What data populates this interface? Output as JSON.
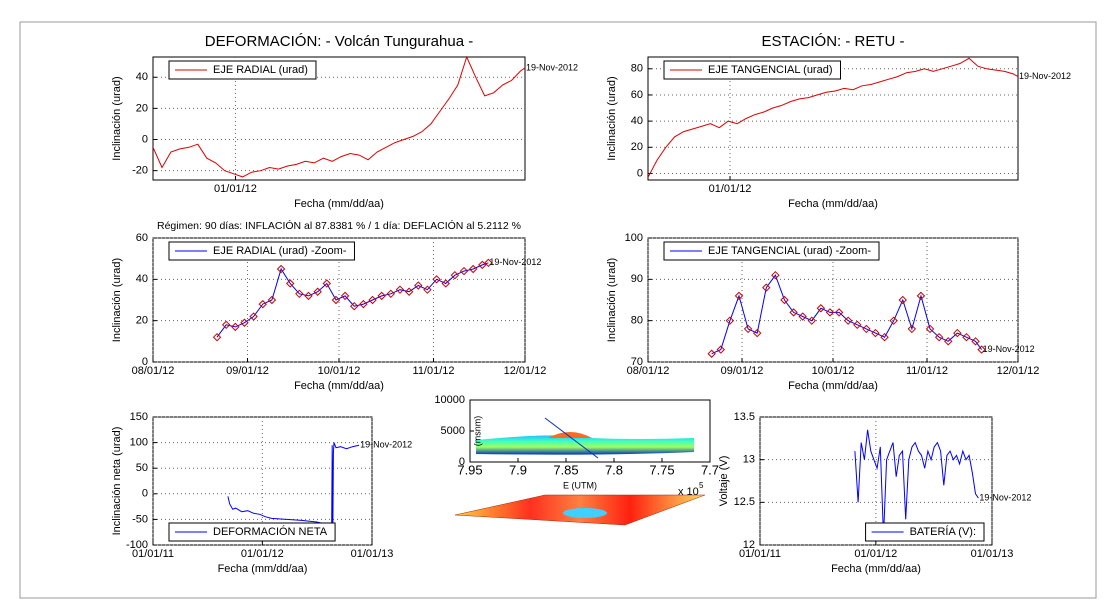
{
  "chart_data": [
    {
      "type": "line",
      "title": "DEFORMACIÓN: - Volcán Tungurahua -",
      "xlabel": "Fecha (mm/dd/aa)",
      "ylabel": "Inclinación (urad)",
      "x": [
        734777,
        734787,
        734797,
        734807,
        734817,
        734827,
        734837,
        734847,
        734857,
        734867,
        734877,
        734887,
        734897,
        734907,
        734917,
        734927,
        734937,
        734947,
        734957,
        734967,
        734977,
        734987,
        734997,
        735007,
        735017,
        735027,
        735037,
        735047,
        735057,
        735067,
        735077,
        735087,
        735097,
        735107,
        735117,
        735127,
        735137,
        735147,
        735157,
        735167,
        735177,
        735187,
        735192
      ],
      "series": [
        {
          "name": "EJE RADIAL (urad)",
          "color": "#dd0000",
          "values": [
            -5,
            -18,
            -8,
            -6,
            -5,
            -3,
            -12,
            -15,
            -20,
            -22,
            -24,
            -21,
            -20,
            -18,
            -19,
            -17,
            -16,
            -14,
            -15,
            -12,
            -14,
            -11,
            -9,
            -10,
            -13,
            -8,
            -5,
            -2,
            0,
            2,
            5,
            10,
            18,
            26,
            35,
            53,
            40,
            28,
            30,
            35,
            38,
            44,
            46
          ]
        }
      ],
      "xlim": [
        734777,
        735192
      ],
      "ylim": [
        -26,
        53
      ],
      "xticks": [
        {
          "value": 734869,
          "label": "01/01/12"
        }
      ],
      "yticks": [
        -20,
        0,
        20,
        40
      ],
      "grid": true,
      "legend": "upper left",
      "annotation": "19-Nov-2012"
    },
    {
      "type": "line",
      "title": "ESTACIÓN: - RETU -",
      "xlabel": "Fecha (mm/dd/aa)",
      "ylabel": "Inclinación (urad)",
      "x": [
        734777,
        734787,
        734797,
        734807,
        734817,
        734827,
        734837,
        734847,
        734857,
        734867,
        734877,
        734887,
        734897,
        734907,
        734917,
        734927,
        734937,
        734947,
        734957,
        734967,
        734977,
        734987,
        734997,
        735007,
        735017,
        735027,
        735037,
        735047,
        735057,
        735067,
        735077,
        735087,
        735097,
        735107,
        735117,
        735127,
        735137,
        735147,
        735157,
        735167,
        735177,
        735187,
        735192
      ],
      "series": [
        {
          "name": "EJE TANGENCIAL (urad)",
          "color": "#dd0000",
          "values": [
            -3,
            10,
            20,
            28,
            32,
            34,
            36,
            38,
            35,
            40,
            38,
            42,
            45,
            47,
            50,
            52,
            55,
            57,
            58,
            60,
            62,
            63,
            65,
            64,
            67,
            68,
            70,
            72,
            74,
            77,
            78,
            80,
            78,
            80,
            82,
            84,
            88,
            82,
            80,
            79,
            78,
            76,
            74
          ]
        }
      ],
      "xlim": [
        734777,
        735192
      ],
      "ylim": [
        -5,
        89
      ],
      "xticks": [
        {
          "value": 734869,
          "label": "01/01/12"
        }
      ],
      "yticks": [
        0,
        20,
        40,
        60,
        80
      ],
      "grid": true,
      "legend": "upper left",
      "annotation": "19-Nov-2012"
    },
    {
      "type": "line",
      "subtitle": "Régimen: 90 días: INFLACIÓN al 87.8381 % / 1 día: DEFLACIÓN al 5.2112 %",
      "xlabel": "Fecha (mm/dd/aa)",
      "ylabel": "Inclinación (urad)",
      "x": [
        735103,
        735106,
        735109,
        735112,
        735115,
        735118,
        735121,
        735124,
        735127,
        735130,
        735133,
        735136,
        735139,
        735142,
        735145,
        735148,
        735151,
        735154,
        735157,
        735160,
        735163,
        735166,
        735169,
        735172,
        735175,
        735178,
        735181,
        735184,
        735187,
        735190,
        735192
      ],
      "series": [
        {
          "name": "EJE RADIAL (urad) -Zoom-",
          "color": "#0000ff",
          "marker": "diamond",
          "marker_color": "#cc0000",
          "values": [
            12,
            18,
            17,
            19,
            22,
            28,
            30,
            45,
            38,
            33,
            32,
            34,
            38,
            30,
            32,
            27,
            28,
            30,
            32,
            33,
            35,
            34,
            37,
            35,
            40,
            38,
            42,
            44,
            45,
            47,
            48
          ]
        }
      ],
      "xlim": [
        735082,
        735204
      ],
      "ylim": [
        0,
        60
      ],
      "xticks": [
        {
          "value": 735082,
          "label": "08/01/12"
        },
        {
          "value": 735113,
          "label": "09/01/12"
        },
        {
          "value": 735143,
          "label": "10/01/12"
        },
        {
          "value": 735174,
          "label": "11/01/12"
        },
        {
          "value": 735204,
          "label": "12/01/12"
        }
      ],
      "yticks": [
        0,
        20,
        40,
        60
      ],
      "grid": true,
      "legend": "upper left",
      "annotation": "19-Nov-2012"
    },
    {
      "type": "line",
      "xlabel": "Fecha (mm/dd/aa)",
      "ylabel": "Inclinación (urad)",
      "x": [
        735103,
        735106,
        735109,
        735112,
        735115,
        735118,
        735121,
        735124,
        735127,
        735130,
        735133,
        735136,
        735139,
        735142,
        735145,
        735148,
        735151,
        735154,
        735157,
        735160,
        735163,
        735166,
        735169,
        735172,
        735175,
        735178,
        735181,
        735184,
        735187,
        735190,
        735192
      ],
      "series": [
        {
          "name": "EJE TANGENCIAL (urad) -Zoom-",
          "color": "#0000ff",
          "marker": "diamond",
          "marker_color": "#cc0000",
          "values": [
            72,
            73,
            80,
            86,
            78,
            77,
            88,
            91,
            85,
            82,
            81,
            80,
            83,
            82,
            82,
            80,
            79,
            78,
            77,
            76,
            80,
            85,
            78,
            86,
            78,
            76,
            75,
            77,
            76,
            75,
            73
          ]
        }
      ],
      "xlim": [
        735082,
        735204
      ],
      "ylim": [
        70,
        100
      ],
      "xticks": [
        {
          "value": 735082,
          "label": "08/01/12"
        },
        {
          "value": 735113,
          "label": "09/01/12"
        },
        {
          "value": 735143,
          "label": "10/01/12"
        },
        {
          "value": 735174,
          "label": "11/01/12"
        },
        {
          "value": 735204,
          "label": "12/01/12"
        }
      ],
      "yticks": [
        70,
        80,
        90,
        100
      ],
      "grid": true,
      "legend": "upper left",
      "annotation": "19-Nov-2012"
    },
    {
      "type": "line",
      "xlabel": "Fecha (mm/dd/aa)",
      "ylabel": "Inclinación neta (urad)",
      "x": [
        734754,
        734760,
        734770,
        734780,
        734800,
        734820,
        734840,
        734860,
        734880,
        734900,
        734950,
        735000,
        735050,
        735090,
        735095,
        735100,
        735102,
        735104,
        735106,
        735108,
        735115,
        735130,
        735150,
        735170,
        735192
      ],
      "series": [
        {
          "name": "DEFORMACIÓN NETA",
          "color": "#0000ff",
          "values": [
            -5,
            -20,
            -30,
            -28,
            -35,
            -33,
            -38,
            -40,
            -45,
            -48,
            -50,
            -52,
            -55,
            -60,
            -78,
            -80,
            95,
            -80,
            80,
            100,
            90,
            92,
            88,
            92,
            95
          ]
        }
      ],
      "xlim": [
        734504,
        735235
      ],
      "ylim": [
        -100,
        150
      ],
      "xticks": [
        {
          "value": 734504,
          "label": "01/01/11"
        },
        {
          "value": 734869,
          "label": "01/01/12"
        },
        {
          "value": 735235,
          "label": "01/01/13"
        }
      ],
      "yticks": [
        -100,
        -50,
        0,
        50,
        100,
        150
      ],
      "grid": true,
      "legend": "lower left",
      "annotation": "19-Nov-2012"
    },
    {
      "type": "surface",
      "xlabel": "E (UTM)",
      "ylabel": "(msnm)",
      "x_multiplier": "x 10",
      "x_exponent": "5",
      "xlim": [
        7.95,
        7.7
      ],
      "ylim": [
        0,
        10000
      ],
      "xticks": [
        7.95,
        7.9,
        7.85,
        7.8,
        7.75,
        7.7
      ],
      "yticks": [
        0,
        5000,
        10000
      ]
    },
    {
      "type": "line",
      "xlabel": "Fecha (mm/dd/aa)",
      "ylabel": "Voltaje (V)",
      "x": [
        734803,
        734813,
        734823,
        734833,
        734843,
        734853,
        734863,
        734873,
        734883,
        734893,
        734903,
        734913,
        734923,
        734933,
        734943,
        734953,
        734963,
        734973,
        734983,
        734993,
        735003,
        735013,
        735023,
        735033,
        735043,
        735053,
        735063,
        735073,
        735083,
        735093,
        735103,
        735113,
        735123,
        735133,
        735143,
        735153,
        735163,
        735173,
        735183,
        735192
      ],
      "series": [
        {
          "name": "BATERÍA (V):",
          "color": "#0000ff",
          "values": [
            13.1,
            12.5,
            13.2,
            13.0,
            13.35,
            13.1,
            13.0,
            12.9,
            13.15,
            12.1,
            13.0,
            13.1,
            13.2,
            12.8,
            13.05,
            13.1,
            12.3,
            13.0,
            13.15,
            13.2,
            13.1,
            13.05,
            12.9,
            13.1,
            13.0,
            13.15,
            13.2,
            13.1,
            12.7,
            13.05,
            13.1,
            13.0,
            13.05,
            12.95,
            13.1,
            13.0,
            13.05,
            12.85,
            12.6,
            12.55
          ]
        }
      ],
      "xlim": [
        734504,
        735235
      ],
      "ylim": [
        12,
        13.5
      ],
      "xticks": [
        {
          "value": 734504,
          "label": "01/01/11"
        },
        {
          "value": 734869,
          "label": "01/01/12"
        },
        {
          "value": 735235,
          "label": "01/01/13"
        }
      ],
      "yticks": [
        12,
        12.5,
        13,
        13.5
      ],
      "grid": true,
      "legend": "lower right",
      "annotation": "19-Nov-2012"
    }
  ]
}
